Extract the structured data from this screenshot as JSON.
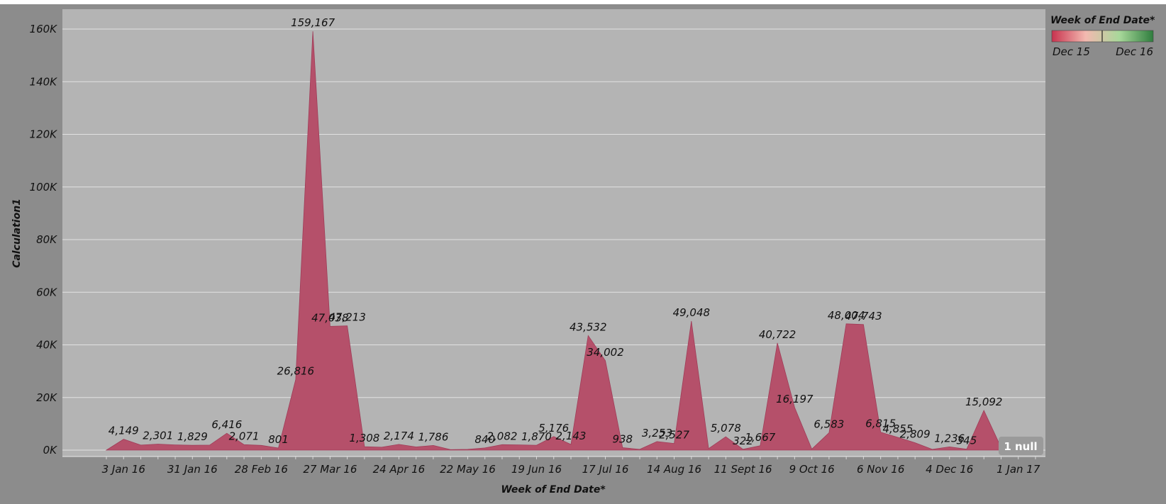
{
  "chart_data": {
    "type": "area",
    "ylabel": "Calculation1",
    "xlabel": "Week of End Date*",
    "ylim": [
      0,
      167000
    ],
    "y_ticks": [
      "0K",
      "20K",
      "40K",
      "60K",
      "80K",
      "100K",
      "120K",
      "140K",
      "160K"
    ],
    "x_tick_labels": [
      "3 Jan 16",
      "31 Jan 16",
      "28 Feb 16",
      "27 Mar 16",
      "24 Apr 16",
      "22 May 16",
      "19 Jun 16",
      "17 Jul 16",
      "14 Aug 16",
      "11 Sept 16",
      "9 Oct 16",
      "6 Nov 16",
      "4 Dec 16",
      "1 Jan 17"
    ],
    "x_start": "2015-12-27",
    "x_end": "2017-01-08",
    "grid": true,
    "fill_color": "#b5506a",
    "plot_background": "#b4b4b4",
    "page_background": "#8c8c8c",
    "legend": {
      "title": "Week of End Date*",
      "min_label": "Dec 15",
      "max_label": "Dec 16",
      "colors": [
        "#c8334f",
        "#f3b9b0",
        "#a8d89a",
        "#2f7d3e"
      ],
      "placement": "top-right"
    },
    "null_badge": "1 null",
    "points": [
      {
        "x": "2015-12-27",
        "y": 0
      },
      {
        "x": "2016-01-03",
        "y": 4149,
        "label": "4,149"
      },
      {
        "x": "2016-01-10",
        "y": 1900
      },
      {
        "x": "2016-01-17",
        "y": 2301,
        "label": "2,301"
      },
      {
        "x": "2016-01-24",
        "y": 2000
      },
      {
        "x": "2016-01-31",
        "y": 1829,
        "label": "1,829"
      },
      {
        "x": "2016-02-07",
        "y": 1900
      },
      {
        "x": "2016-02-14",
        "y": 6416,
        "label": "6,416"
      },
      {
        "x": "2016-02-21",
        "y": 2071,
        "label": "2,071"
      },
      {
        "x": "2016-02-28",
        "y": 1800
      },
      {
        "x": "2016-03-06",
        "y": 801,
        "label": "801"
      },
      {
        "x": "2016-03-13",
        "y": 26816,
        "label": "26,816"
      },
      {
        "x": "2016-03-20",
        "y": 159167,
        "label": "159,167"
      },
      {
        "x": "2016-03-27",
        "y": 47038,
        "label": "47,038"
      },
      {
        "x": "2016-04-03",
        "y": 47213,
        "label": "47,213"
      },
      {
        "x": "2016-04-10",
        "y": 1308,
        "label": "1,308"
      },
      {
        "x": "2016-04-17",
        "y": 1100
      },
      {
        "x": "2016-04-24",
        "y": 2174,
        "label": "2,174"
      },
      {
        "x": "2016-05-01",
        "y": 1200
      },
      {
        "x": "2016-05-08",
        "y": 1786,
        "label": "1,786"
      },
      {
        "x": "2016-05-15",
        "y": 200
      },
      {
        "x": "2016-05-22",
        "y": 300
      },
      {
        "x": "2016-05-29",
        "y": 840,
        "label": "840"
      },
      {
        "x": "2016-06-05",
        "y": 2082,
        "label": "2,082"
      },
      {
        "x": "2016-06-12",
        "y": 2000
      },
      {
        "x": "2016-06-19",
        "y": 1870,
        "label": "1,870"
      },
      {
        "x": "2016-06-26",
        "y": 5176,
        "label": "5,176"
      },
      {
        "x": "2016-07-03",
        "y": 2143,
        "label": "2,143"
      },
      {
        "x": "2016-07-10",
        "y": 43532,
        "label": "43,532"
      },
      {
        "x": "2016-07-17",
        "y": 34002,
        "label": "34,002"
      },
      {
        "x": "2016-07-24",
        "y": 938,
        "label": "938"
      },
      {
        "x": "2016-07-31",
        "y": 300
      },
      {
        "x": "2016-08-07",
        "y": 3253,
        "label": "3,253"
      },
      {
        "x": "2016-08-14",
        "y": 2527,
        "label": "2,527"
      },
      {
        "x": "2016-08-21",
        "y": 49048,
        "label": "49,048"
      },
      {
        "x": "2016-08-28",
        "y": 600
      },
      {
        "x": "2016-09-04",
        "y": 5078,
        "label": "5,078"
      },
      {
        "x": "2016-09-11",
        "y": 322,
        "label": "322"
      },
      {
        "x": "2016-09-18",
        "y": 1667,
        "label": "1,667"
      },
      {
        "x": "2016-09-25",
        "y": 40722,
        "label": "40,722"
      },
      {
        "x": "2016-10-02",
        "y": 16197,
        "label": "16,197"
      },
      {
        "x": "2016-10-09",
        "y": 400
      },
      {
        "x": "2016-10-16",
        "y": 6583,
        "label": "6,583"
      },
      {
        "x": "2016-10-23",
        "y": 48004,
        "label": "48,004"
      },
      {
        "x": "2016-10-30",
        "y": 47743,
        "label": "47,743"
      },
      {
        "x": "2016-11-06",
        "y": 6815,
        "label": "6,815"
      },
      {
        "x": "2016-11-13",
        "y": 4855,
        "label": "4,855"
      },
      {
        "x": "2016-11-20",
        "y": 2809,
        "label": "2,809"
      },
      {
        "x": "2016-11-27",
        "y": 300
      },
      {
        "x": "2016-12-04",
        "y": 1236,
        "label": "1,236"
      },
      {
        "x": "2016-12-11",
        "y": 345,
        "label": "345"
      },
      {
        "x": "2016-12-18",
        "y": 15092,
        "label": "15,092"
      },
      {
        "x": "2016-12-25",
        "y": 1000
      }
    ]
  }
}
